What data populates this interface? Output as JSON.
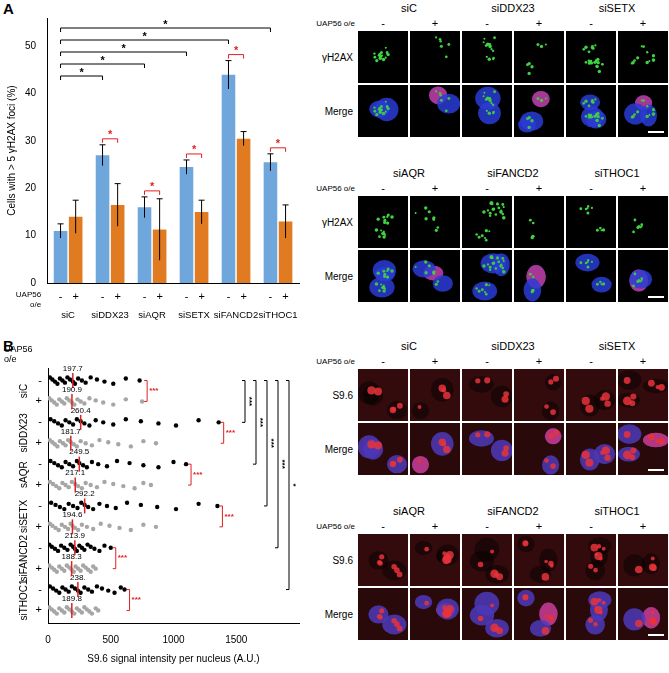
{
  "chart_data": [
    {
      "type": "bar",
      "panel": "A",
      "y_label": "Cells with > 5 γH2AX foci (%)",
      "row_label": "UAP56 o/e",
      "categories": [
        "siC",
        "siDDX23",
        "siAQR",
        "siSETX",
        "siFANCD2",
        "siTHOC1"
      ],
      "series": [
        {
          "name": "-",
          "color": "#6fa6dc",
          "values": [
            11,
            27,
            16,
            24.5,
            44,
            25.5
          ],
          "errors": [
            1.5,
            2.2,
            2.2,
            1.5,
            3,
            1.8
          ]
        },
        {
          "name": "+",
          "color": "#e07b22",
          "values": [
            14,
            16.5,
            11.3,
            15,
            30.5,
            13
          ],
          "errors": [
            3.5,
            4.5,
            6.5,
            2.5,
            1.5,
            3.5
          ]
        }
      ],
      "ylim": [
        0,
        56
      ],
      "yticks": [
        0,
        10,
        20,
        30,
        40,
        50
      ],
      "grid": false,
      "significance": [
        {
          "from": [
            "siC",
            "-"
          ],
          "to": [
            "siDDX23",
            "-"
          ],
          "label": "*",
          "color": "#000000"
        },
        {
          "from": [
            "siC",
            "-"
          ],
          "to": [
            "siAQR",
            "-"
          ],
          "label": "*",
          "color": "#000000"
        },
        {
          "from": [
            "siC",
            "-"
          ],
          "to": [
            "siSETX",
            "-"
          ],
          "label": "*",
          "color": "#000000"
        },
        {
          "from": [
            "siC",
            "-"
          ],
          "to": [
            "siFANCD2",
            "-"
          ],
          "label": "*",
          "color": "#000000"
        },
        {
          "from": [
            "siC",
            "-"
          ],
          "to": [
            "siTHOC1",
            "-"
          ],
          "label": "*",
          "color": "#000000"
        },
        {
          "from": [
            "siDDX23",
            "-"
          ],
          "to": [
            "siDDX23",
            "+"
          ],
          "label": "*",
          "color": "#e02020"
        },
        {
          "from": [
            "siAQR",
            "-"
          ],
          "to": [
            "siAQR",
            "+"
          ],
          "label": "*",
          "color": "#e02020"
        },
        {
          "from": [
            "siSETX",
            "-"
          ],
          "to": [
            "siSETX",
            "+"
          ],
          "label": "*",
          "color": "#e02020"
        },
        {
          "from": [
            "siFANCD2",
            "-"
          ],
          "to": [
            "siFANCD2",
            "+"
          ],
          "label": "*",
          "color": "#e02020"
        },
        {
          "from": [
            "siTHOC1",
            "-"
          ],
          "to": [
            "siTHOC1",
            "+"
          ],
          "label": "*",
          "color": "#e02020"
        }
      ]
    },
    {
      "type": "scatter",
      "panel": "B",
      "x_label": "S9.6 signal intensity per nucleus (A.U.)",
      "row_label": "UAP56 o/e",
      "categories": [
        "siC",
        "siDDX23",
        "sAQR",
        "siSETX",
        "siFANCD2",
        "siTHOC1"
      ],
      "series": [
        {
          "name": "-",
          "color": "#000000",
          "values": [
            [
              15,
              35,
              55,
              75,
              95,
              115,
              135,
              155,
              175,
              198,
              215,
              240,
              270,
              300,
              340,
              390,
              450,
              520,
              620,
              730
            ],
            [
              20,
              50,
              80,
              110,
              140,
              170,
              200,
              230,
              260,
              290,
              330,
              380,
              440,
              520,
              620,
              740,
              880,
              1020,
              1200,
              1360
            ],
            [
              20,
              50,
              80,
              110,
              140,
              170,
              200,
              230,
              250,
              280,
              310,
              350,
              400,
              470,
              550,
              650,
              760,
              880,
              1000,
              1100
            ],
            [
              25,
              60,
              95,
              130,
              165,
              200,
              235,
              265,
              292,
              320,
              360,
              410,
              470,
              540,
              630,
              740,
              870,
              1020,
              1200,
              1350
            ],
            [
              10,
              30,
              55,
              80,
              105,
              130,
              155,
              180,
              200,
              214,
              230,
              250,
              270,
              290,
              315,
              340,
              370,
              410,
              450,
              500
            ],
            [
              15,
              40,
              65,
              90,
              115,
              140,
              165,
              190,
              215,
              238,
              260,
              290,
              320,
              350,
              390,
              430,
              480,
              530,
              580,
              610
            ]
          ],
          "medians": [
            197.7,
            260.4,
            249.5,
            292.2,
            213.9,
            238
          ],
          "median_labels": [
            "197.7",
            "260.4",
            "249.5",
            "292.2",
            "213.9",
            "238."
          ]
        },
        {
          "name": "+",
          "color": "#a6a6a6",
          "values": [
            [
              10,
              30,
              50,
              70,
              90,
              110,
              130,
              150,
              170,
              191,
              210,
              235,
              260,
              290,
              330,
              380,
              440,
              520,
              620,
              750
            ],
            [
              15,
              35,
              55,
              75,
              95,
              120,
              140,
              160,
              182,
              205,
              230,
              260,
              300,
              350,
              410,
              480,
              560,
              660,
              760,
              860
            ],
            [
              15,
              40,
              65,
              90,
              115,
              140,
              165,
              190,
              217,
              240,
              270,
              300,
              340,
              390,
              450,
              520,
              600,
              690,
              760,
              820
            ],
            [
              15,
              35,
              60,
              85,
              110,
              135,
              160,
              180,
              195,
              215,
              240,
              270,
              310,
              360,
              420,
              490,
              570,
              660,
              760,
              860
            ],
            [
              10,
              30,
              50,
              70,
              90,
              110,
              130,
              150,
              170,
              188,
              205,
              220,
              240,
              260,
              280,
              300,
              320,
              340,
              360,
              380
            ],
            [
              10,
              30,
              50,
              70,
              90,
              110,
              130,
              150,
              170,
              190,
              210,
              230,
              250,
              270,
              290,
              310,
              330,
              350,
              380,
              400
            ]
          ],
          "medians": [
            190.9,
            181.7,
            217.1,
            194.6,
            188.3,
            189.8
          ]
        }
      ],
      "xlim": [
        0,
        2000
      ],
      "xticks": [
        0,
        500,
        1000,
        1500
      ],
      "grid": false,
      "significance": [
        {
          "from": [
            "siC",
            "-"
          ],
          "to": [
            "siC",
            "+"
          ],
          "label": "***",
          "color": "#e02020"
        },
        {
          "from": [
            "siDDX23",
            "-"
          ],
          "to": [
            "siDDX23",
            "+"
          ],
          "label": "***",
          "color": "#e02020"
        },
        {
          "from": [
            "sAQR",
            "-"
          ],
          "to": [
            "sAQR",
            "+"
          ],
          "label": "***",
          "color": "#e02020"
        },
        {
          "from": [
            "siSETX",
            "-"
          ],
          "to": [
            "siSETX",
            "+"
          ],
          "label": "***",
          "color": "#e02020"
        },
        {
          "from": [
            "siFANCD2",
            "-"
          ],
          "to": [
            "siFANCD2",
            "+"
          ],
          "label": "***",
          "color": "#e02020"
        },
        {
          "from": [
            "siTHOC1",
            "-"
          ],
          "to": [
            "siTHOC1",
            "+"
          ],
          "label": "***",
          "color": "#e02020"
        },
        {
          "from": [
            "siC",
            "-"
          ],
          "to": [
            "siDDX23",
            "-"
          ],
          "label": "***",
          "color": "#000000"
        },
        {
          "from": [
            "siC",
            "-"
          ],
          "to": [
            "sAQR",
            "-"
          ],
          "label": "***",
          "color": "#000000"
        },
        {
          "from": [
            "siC",
            "-"
          ],
          "to": [
            "siSETX",
            "-"
          ],
          "label": "***",
          "color": "#000000"
        },
        {
          "from": [
            "siC",
            "-"
          ],
          "to": [
            "siFANCD2",
            "-"
          ],
          "label": "***",
          "color": "#000000"
        },
        {
          "from": [
            "siC",
            "-"
          ],
          "to": [
            "siTHOC1",
            "-"
          ],
          "label": "*",
          "color": "#000000"
        }
      ]
    }
  ],
  "micrographs": [
    {
      "condition_label": "UAP56 o/e",
      "conditions": [
        "-",
        "+"
      ],
      "channels": [
        {
          "name": "γH2AX",
          "color": "#3fd43f"
        },
        {
          "name": "Merge"
        }
      ],
      "groups": [
        [
          "siC",
          "siDDX23",
          "siSETX"
        ],
        [
          "siAQR",
          "siFANCD2",
          "siTHOC1"
        ]
      ]
    },
    {
      "condition_label": "UAP56 o/e",
      "conditions": [
        "-",
        "+"
      ],
      "channels": [
        {
          "name": "S9.6",
          "color": "#e8333a"
        },
        {
          "name": "Merge"
        }
      ],
      "groups": [
        [
          "siC",
          "siDDX23",
          "siSETX"
        ],
        [
          "siAQR",
          "siFANCD2",
          "siTHOC1"
        ]
      ]
    }
  ]
}
